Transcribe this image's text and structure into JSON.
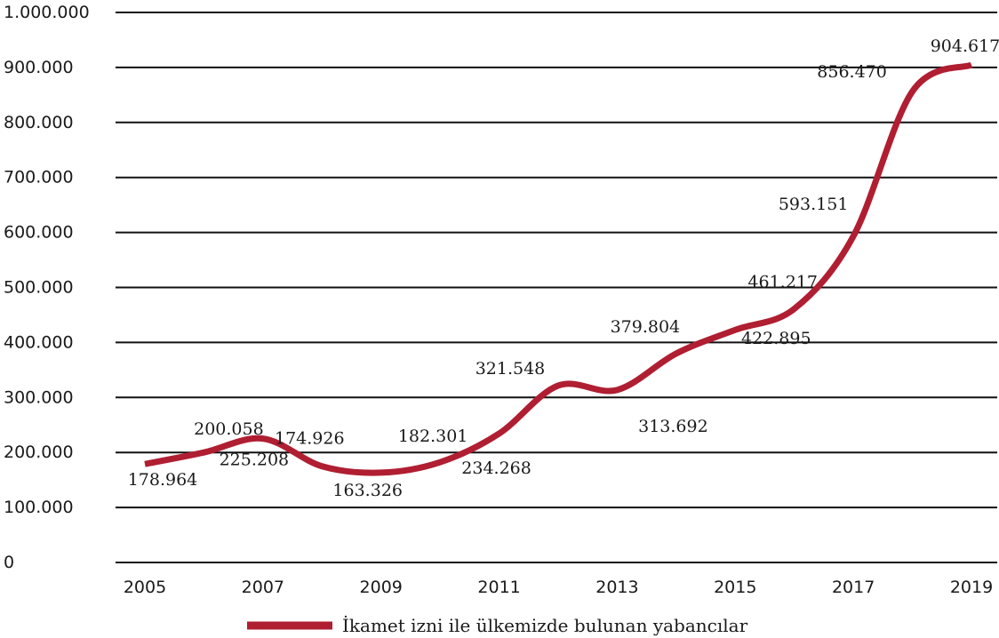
{
  "chart_data": {
    "type": "line",
    "x": [
      2005,
      2006,
      2007,
      2008,
      2009,
      2010,
      2011,
      2012,
      2013,
      2014,
      2015,
      2016,
      2017,
      2018,
      2019
    ],
    "series": [
      {
        "name": "İkamet izni ile ülkemizde bulunan yabancılar",
        "color": "#b01e32",
        "values": [
          178964,
          200058,
          225208,
          174926,
          163326,
          182301,
          234268,
          321548,
          313692,
          379804,
          422895,
          461217,
          593151,
          856470,
          904617
        ]
      }
    ],
    "data_labels": [
      "178.964",
      "200.058",
      "225.208",
      "174.926",
      "163.326",
      "182.301",
      "234.268",
      "321.548",
      "313.692",
      "379.804",
      "422.895",
      "461.217",
      "593.151",
      "856.470",
      "904.617"
    ],
    "ylim": [
      0,
      1000000
    ],
    "y_ticks": [
      "0",
      "100.000",
      "200.000",
      "300.000",
      "400.000",
      "500.000",
      "600.000",
      "700.000",
      "800.000",
      "900.000",
      "1.000.000"
    ],
    "x_ticks": [
      "2005",
      "2007",
      "2009",
      "2011",
      "2013",
      "2015",
      "2017",
      "2019"
    ],
    "grid": true,
    "legend_position": "bottom",
    "title": "",
    "xlabel": "",
    "ylabel": ""
  }
}
